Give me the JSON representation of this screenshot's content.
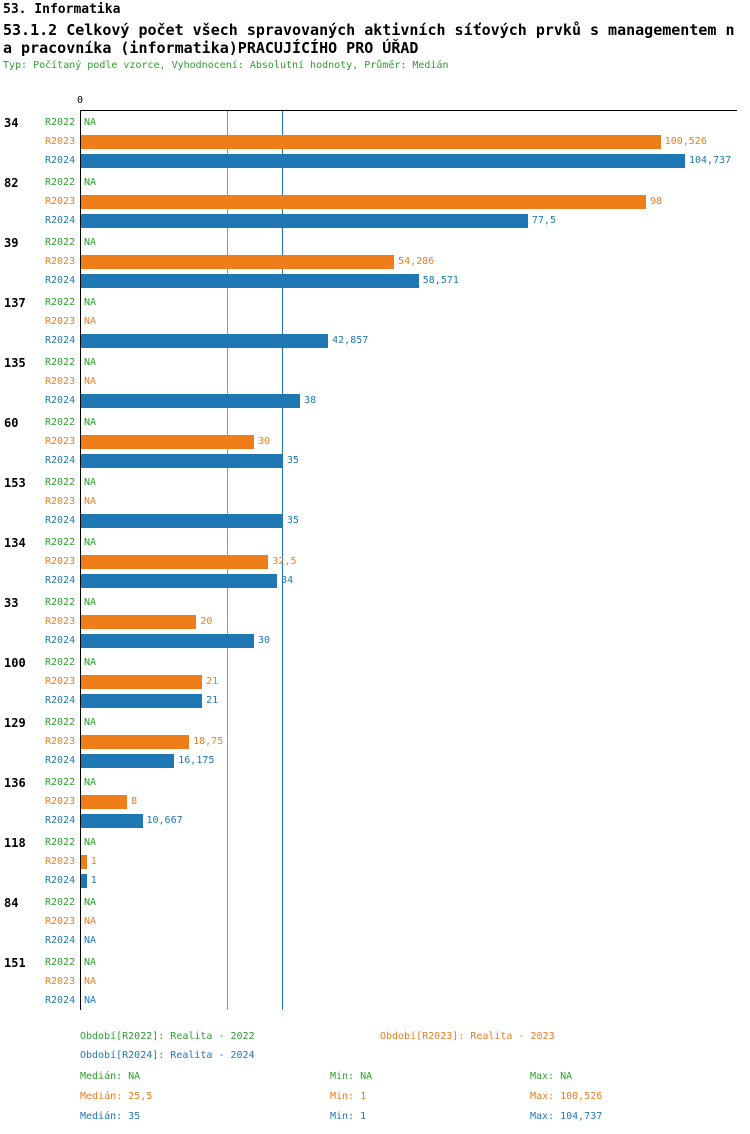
{
  "header": {
    "section": "53. Informatika",
    "title_line1": "53.1.2 Celkový počet všech spravovaných aktivních síťových prvků s managementem n",
    "title_line2": "a pracovníka (informatika)PRACUJÍCÍHO PRO ÚŘAD",
    "meta": "Typ: Počítaný podle vzorce, Vyhodnocení: Absolutní hodnoty, Průměr: Medián"
  },
  "colors": {
    "r2022": "#2ca02c",
    "r2023": "#ef7d1a",
    "r2024": "#1f77b4"
  },
  "chart_data": {
    "type": "bar",
    "orientation": "horizontal",
    "title": "53.1.2 Celkový počet všech spravovaných aktivních síťových prvků s managementem na pracovníka (informatika)PRACUJÍCÍHO PRO ÚŘAD",
    "x_axis": {
      "zero_tick": "0",
      "max": 104.737
    },
    "series_labels": [
      "R2022",
      "R2023",
      "R2024"
    ],
    "reference_lines": [
      {
        "series": "R2023",
        "label": "Medián R2023",
        "value": 25.5,
        "color": "#ef7d1a"
      },
      {
        "series": "R2024",
        "label": "Medián R2024",
        "value": 35,
        "color": "#1f77b4"
      }
    ],
    "groups": [
      {
        "id": "34",
        "values": [
          null,
          100.526,
          104.737
        ],
        "labels": [
          "NA",
          "100,526",
          "104,737"
        ]
      },
      {
        "id": "82",
        "values": [
          null,
          98,
          77.5
        ],
        "labels": [
          "NA",
          "98",
          "77,5"
        ]
      },
      {
        "id": "39",
        "values": [
          null,
          54.286,
          58.571
        ],
        "labels": [
          "NA",
          "54,286",
          "58,571"
        ]
      },
      {
        "id": "137",
        "values": [
          null,
          null,
          42.857
        ],
        "labels": [
          "NA",
          "NA",
          "42,857"
        ]
      },
      {
        "id": "135",
        "values": [
          null,
          null,
          38
        ],
        "labels": [
          "NA",
          "NA",
          "38"
        ]
      },
      {
        "id": "60",
        "values": [
          null,
          30,
          35
        ],
        "labels": [
          "NA",
          "30",
          "35"
        ]
      },
      {
        "id": "153",
        "values": [
          null,
          null,
          35
        ],
        "labels": [
          "NA",
          "NA",
          "35"
        ]
      },
      {
        "id": "134",
        "values": [
          null,
          32.5,
          34
        ],
        "labels": [
          "NA",
          "32,5",
          "34"
        ]
      },
      {
        "id": "33",
        "values": [
          null,
          20,
          30
        ],
        "labels": [
          "NA",
          "20",
          "30"
        ]
      },
      {
        "id": "100",
        "values": [
          null,
          21,
          21
        ],
        "labels": [
          "NA",
          "21",
          "21"
        ]
      },
      {
        "id": "129",
        "values": [
          null,
          18.75,
          16.175
        ],
        "labels": [
          "NA",
          "18,75",
          "16,175"
        ]
      },
      {
        "id": "136",
        "values": [
          null,
          8,
          10.667
        ],
        "labels": [
          "NA",
          "8",
          "10,667"
        ]
      },
      {
        "id": "118",
        "values": [
          null,
          1,
          1
        ],
        "labels": [
          "NA",
          "1",
          "1"
        ]
      },
      {
        "id": "84",
        "values": [
          null,
          null,
          null
        ],
        "labels": [
          "NA",
          "NA",
          "NA"
        ]
      },
      {
        "id": "151",
        "values": [
          null,
          null,
          null
        ],
        "labels": [
          "NA",
          "NA",
          "NA"
        ]
      }
    ]
  },
  "legend": {
    "r2022": "Období[R2022]: Realita - 2022",
    "r2023": "Období[R2023]: Realita - 2023",
    "r2024": "Období[R2024]: Realita - 2024"
  },
  "stats": {
    "r2022": {
      "median": "Medián: NA",
      "min": "Min: NA",
      "max": "Max: NA"
    },
    "r2023": {
      "median": "Medián: 25,5",
      "min": "Min: 1",
      "max": "Max: 100,526"
    },
    "r2024": {
      "median": "Medián: 35",
      "min": "Min: 1",
      "max": "Max: 104,737"
    }
  }
}
